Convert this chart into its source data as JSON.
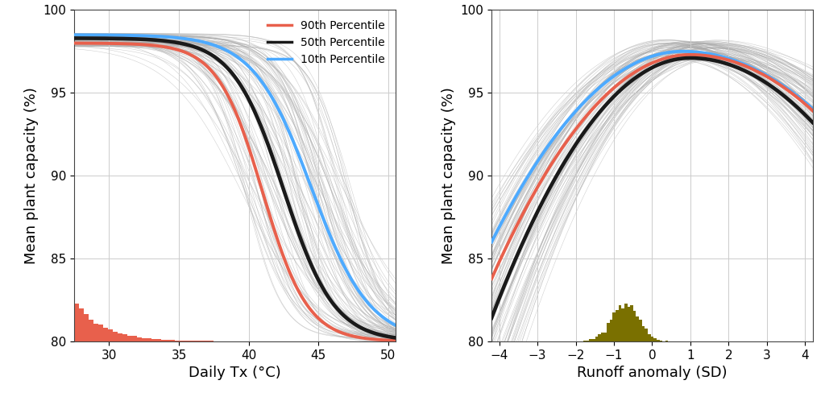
{
  "left_xlabel": "Daily Tx (°C)",
  "left_ylabel": "Mean plant capacity (%)",
  "right_xlabel": "Runoff anomaly (SD)",
  "right_ylabel": "Mean plant capacity (%)",
  "ylim": [
    80,
    100
  ],
  "left_xlim": [
    27.5,
    50.5
  ],
  "right_xlim": [
    -4.2,
    4.2
  ],
  "left_xticks": [
    30,
    35,
    40,
    45,
    50
  ],
  "right_xticks": [
    -4,
    -3,
    -2,
    -1,
    0,
    1,
    2,
    3,
    4
  ],
  "yticks": [
    80,
    85,
    90,
    95,
    100
  ],
  "legend_labels": [
    "90th Percentile",
    "50th Percentile",
    "10th Percentile"
  ],
  "color_90": "#E8604C",
  "color_50": "#1a1a1a",
  "color_10": "#4DAAFF",
  "color_gray_lines": "#aaaaaa",
  "color_hist_left": "#E8604C",
  "color_hist_right": "#7a7000",
  "grid_color": "#cccccc",
  "n_sim_lines": 100,
  "lw_main": 2.8,
  "lw_sim": 0.4
}
